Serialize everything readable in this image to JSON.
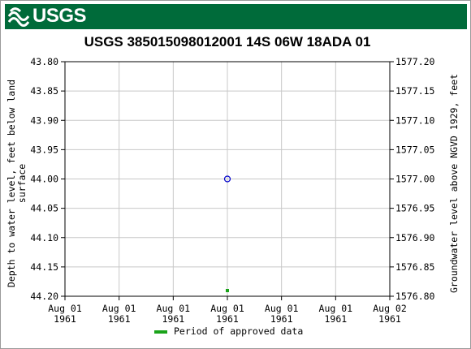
{
  "header": {
    "agency": "USGS"
  },
  "chart_data": {
    "type": "scatter",
    "title": "USGS 385015098012001 14S 06W 18ADA 01",
    "ylabel_left": "Depth to water level, feet below land surface",
    "ylabel_left_lines": [
      "Depth to water level, feet below land",
      "surface"
    ],
    "ylabel_right": "Groundwater level above NGVD 1929, feet",
    "ylim_left": [
      44.2,
      43.8
    ],
    "left_axis_inverted": true,
    "ylim_right": [
      1576.8,
      1577.2
    ],
    "y_ticks_left": [
      "43.80",
      "43.85",
      "43.90",
      "43.95",
      "44.00",
      "44.05",
      "44.10",
      "44.15",
      "44.20"
    ],
    "y_ticks_right": [
      "1577.20",
      "1577.15",
      "1577.10",
      "1577.05",
      "1577.00",
      "1576.95",
      "1576.90",
      "1576.85",
      "1576.80"
    ],
    "x_ticks": [
      [
        "Aug 01",
        "1961"
      ],
      [
        "Aug 01",
        "1961"
      ],
      [
        "Aug 01",
        "1961"
      ],
      [
        "Aug 01",
        "1961"
      ],
      [
        "Aug 01",
        "1961"
      ],
      [
        "Aug 01",
        "1961"
      ],
      [
        "Aug 02",
        "1961"
      ]
    ],
    "grid": true,
    "series": [
      {
        "type": "point",
        "marker": "open-circle",
        "color": "#0000cc",
        "points": [
          {
            "x": "1961-08-01 12:00",
            "y": 44.0
          }
        ]
      },
      {
        "name": "Period of approved data",
        "type": "period",
        "color": "#1aa31a",
        "points": [
          {
            "x": "1961-08-01 12:00"
          }
        ]
      }
    ],
    "legend": {
      "position": "bottom-center",
      "entries": [
        "Period of approved data"
      ]
    }
  }
}
